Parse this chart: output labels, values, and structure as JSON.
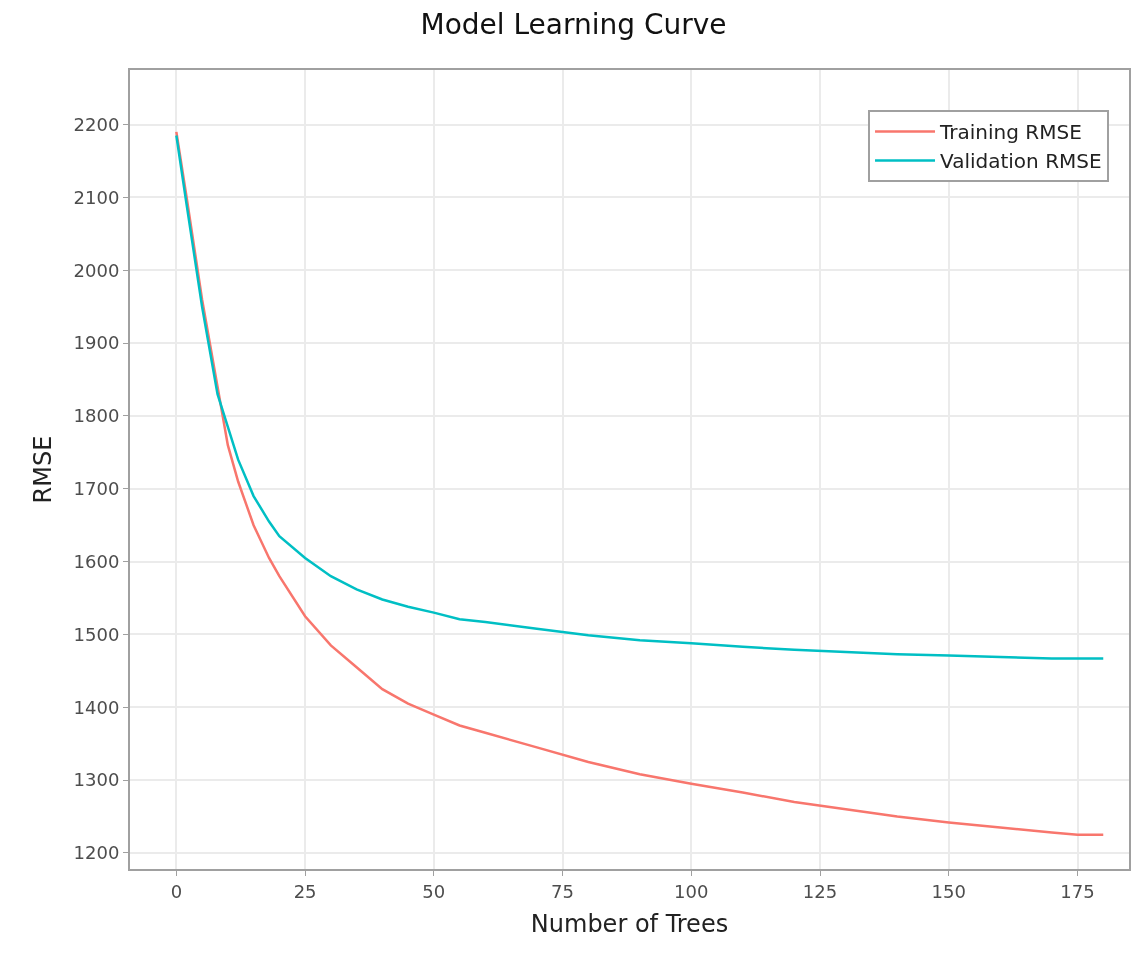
{
  "chart_data": {
    "type": "line",
    "title": "Model Learning Curve",
    "xlabel": "Number of Trees",
    "ylabel": "RMSE",
    "xlim": [
      -9,
      185
    ],
    "xticks": [
      0,
      25,
      50,
      75,
      100,
      125,
      150,
      175
    ],
    "ylim": [
      1178,
      2275
    ],
    "yticks": [
      1200,
      1300,
      1400,
      1500,
      1600,
      1700,
      1800,
      1900,
      2000,
      2100,
      2200
    ],
    "grid": true,
    "legend": "top right",
    "marker": "none",
    "line_style": "solid",
    "x": [
      0,
      2,
      5,
      8,
      10,
      12,
      15,
      18,
      20,
      25,
      30,
      35,
      40,
      45,
      50,
      55,
      60,
      70,
      80,
      90,
      100,
      110,
      120,
      130,
      140,
      150,
      160,
      170,
      175,
      180
    ],
    "series": [
      {
        "name": "Training RMSE",
        "color": "#f8766d",
        "values": [
          2190,
          2100,
          1960,
          1840,
          1760,
          1710,
          1650,
          1605,
          1580,
          1525,
          1485,
          1455,
          1425,
          1405,
          1390,
          1375,
          1365,
          1345,
          1325,
          1308,
          1295,
          1283,
          1270,
          1260,
          1250,
          1242,
          1235,
          1228,
          1225,
          1225
        ]
      },
      {
        "name": "Validation RMSE",
        "color": "#00bfc4",
        "values": [
          2185,
          2090,
          1950,
          1830,
          1785,
          1740,
          1690,
          1655,
          1635,
          1605,
          1580,
          1562,
          1548,
          1538,
          1530,
          1521,
          1517,
          1508,
          1499,
          1492,
          1488,
          1483,
          1479,
          1476,
          1473,
          1471,
          1469,
          1467,
          1467,
          1467
        ]
      }
    ]
  }
}
